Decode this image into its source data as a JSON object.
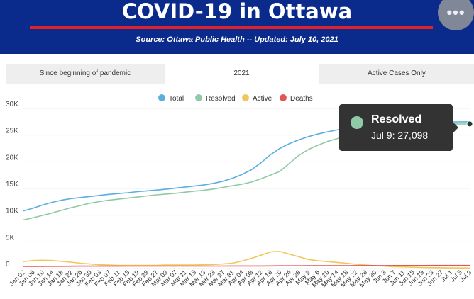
{
  "header": {
    "title": "COVID-19 in Ottawa",
    "source": "Source:  Ottawa Public Health -- Updated:  July 10, 2021",
    "menu_label": "•••"
  },
  "tabs": [
    {
      "label": "Since beginning of pandemic",
      "active": false
    },
    {
      "label": "2021",
      "active": true
    },
    {
      "label": "Active Cases Only",
      "active": false
    }
  ],
  "tooltip": {
    "series": "Resolved",
    "text": "Jul 9: 27,098"
  },
  "colors": {
    "header_bg": "#0a2a8c",
    "accent_red": "#e0202a",
    "total": "#5aaee0",
    "resolved": "#8fc9a6",
    "active": "#f0c75a",
    "deaths": "#e25555"
  },
  "chart_data": {
    "type": "line",
    "x": [
      "Jan 02",
      "Jan 06",
      "Jan 10",
      "Jan 14",
      "Jan 18",
      "Jan 22",
      "Jan 26",
      "Jan 30",
      "Feb 03",
      "Feb 07",
      "Feb 11",
      "Feb 15",
      "Feb 19",
      "Feb 23",
      "Feb 27",
      "Mar 03",
      "Mar 07",
      "Mar 11",
      "Mar 15",
      "Mar 19",
      "Mar 23",
      "Mar 27",
      "Mar 31",
      "Apr 04",
      "Apr 08",
      "Apr 12",
      "Apr 16",
      "Apr 20",
      "Apr 24",
      "Apr 28",
      "May 2",
      "May 6",
      "May 10",
      "May 14",
      "May 18",
      "May 22",
      "May 26",
      "May 30",
      "Jun 3",
      "Jun 7",
      "Jun 11",
      "Jun 15",
      "Jun 19",
      "Jun 23",
      "Jun 27",
      "Jul 1",
      "Jul 5",
      "Jul 9"
    ],
    "ylim": [
      0,
      30000
    ],
    "yticks": [
      "0",
      "5K",
      "10K",
      "15K",
      "20K",
      "25K",
      "30K"
    ],
    "legend_position": "top-center",
    "grid": true,
    "series": [
      {
        "name": "Total",
        "color": "#5aaee0",
        "values": [
          10800,
          11300,
          11900,
          12400,
          12800,
          13100,
          13300,
          13500,
          13700,
          13900,
          14050,
          14200,
          14400,
          14550,
          14700,
          14850,
          15050,
          15250,
          15450,
          15650,
          15950,
          16350,
          16900,
          17600,
          18500,
          19800,
          21300,
          22500,
          23400,
          24100,
          24700,
          25200,
          25600,
          25950,
          26250,
          26500,
          26700,
          26900,
          27050,
          27150,
          27250,
          27300,
          27350,
          27400,
          27430,
          27460,
          27480,
          27500
        ]
      },
      {
        "name": "Resolved",
        "color": "#8fc9a6",
        "values": [
          9100,
          9500,
          9950,
          10400,
          10900,
          11400,
          11800,
          12250,
          12550,
          12800,
          13000,
          13200,
          13400,
          13600,
          13800,
          13950,
          14100,
          14300,
          14500,
          14650,
          14900,
          15200,
          15500,
          15800,
          16200,
          16800,
          17500,
          18200,
          19700,
          21200,
          22300,
          23100,
          23800,
          24300,
          24800,
          25200,
          25600,
          25900,
          26200,
          26450,
          26650,
          26800,
          26900,
          26980,
          27030,
          27060,
          27080,
          27098
        ]
      },
      {
        "name": "Active",
        "color": "#f0c75a",
        "values": [
          1300,
          1500,
          1550,
          1500,
          1350,
          1200,
          1000,
          850,
          700,
          650,
          600,
          600,
          600,
          600,
          600,
          650,
          650,
          650,
          650,
          700,
          750,
          850,
          1000,
          1400,
          1900,
          2500,
          3100,
          3200,
          2700,
          2200,
          1700,
          1450,
          1300,
          1150,
          1000,
          800,
          650,
          550,
          450,
          350,
          300,
          250,
          200,
          170,
          150,
          120,
          110,
          100
        ]
      },
      {
        "name": "Deaths",
        "color": "#e25555",
        "values": [
          400,
          400,
          410,
          420,
          430,
          440,
          445,
          450,
          450,
          455,
          455,
          460,
          460,
          460,
          460,
          465,
          465,
          465,
          470,
          470,
          470,
          470,
          475,
          475,
          480,
          480,
          490,
          500,
          505,
          510,
          515,
          520,
          525,
          530,
          535,
          540,
          545,
          550,
          550,
          555,
          560,
          560,
          560,
          565,
          565,
          570,
          570,
          570
        ]
      }
    ]
  }
}
